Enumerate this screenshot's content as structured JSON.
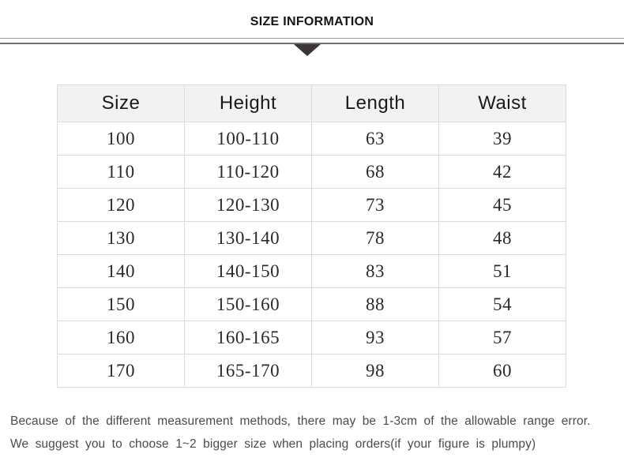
{
  "header": {
    "title": "SIZE INFORMATION"
  },
  "divider": {
    "triangle_icon": "triangle-down"
  },
  "table": {
    "columns": [
      "Size",
      "Height",
      "Length",
      "Waist"
    ],
    "rows": [
      [
        "100",
        "100-110",
        "63",
        "39"
      ],
      [
        "110",
        "110-120",
        "68",
        "42"
      ],
      [
        "120",
        "120-130",
        "73",
        "45"
      ],
      [
        "130",
        "130-140",
        "78",
        "48"
      ],
      [
        "140",
        "140-150",
        "83",
        "51"
      ],
      [
        "150",
        "150-160",
        "88",
        "54"
      ],
      [
        "160",
        "160-165",
        "93",
        "57"
      ],
      [
        "170",
        "165-170",
        "98",
        "60"
      ]
    ]
  },
  "footer": {
    "line1": "Because of the different measurement methods, there may be 1-3cm of the allowable range error.",
    "line2": "We suggest you to choose 1~2 bigger size when placing orders(if your figure is plumpy)"
  },
  "colors": {
    "header_row_bg": "#f2f2f2",
    "table_border": "#dcdcdc",
    "divider_thin": "#9a9a9a",
    "divider_thick": "#6f6f6f",
    "triangle": "#3d3436",
    "title_text": "#151515",
    "cell_text": "#2a2a2a",
    "footer_text": "#4b4b4b"
  }
}
